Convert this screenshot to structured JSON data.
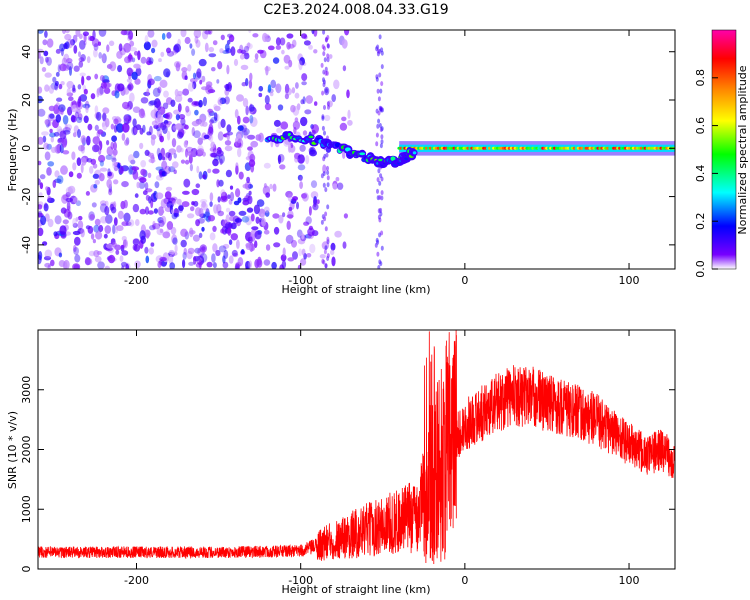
{
  "title": "C2E3.2024.008.04.33.G19",
  "chart_data": [
    {
      "type": "heatmap",
      "xlabel": "Height of straight line (km)",
      "ylabel": "Frequency (Hz)",
      "xlim": [
        -260,
        128
      ],
      "ylim": [
        -50,
        49
      ],
      "x_ticks": [
        -200,
        -100,
        0,
        100
      ],
      "y_ticks": [
        -40,
        -20,
        0,
        20,
        40
      ],
      "colorbar": {
        "label": "Normalized spectral amplitude",
        "range": [
          0,
          1
        ],
        "ticks": [
          "0.0",
          "0.2",
          "0.4",
          "0.6",
          "0.8"
        ],
        "colormap": [
          "#ffffff",
          "#7700ff",
          "#0000ff",
          "#00ffff",
          "#00ff00",
          "#ffff00",
          "#ff8800",
          "#ff0000",
          "#ff00aa"
        ]
      },
      "features": {
        "noise_region": {
          "x_range": [
            -260,
            -80
          ],
          "freq_range": [
            -50,
            49
          ],
          "amplitude": 0.1
        },
        "descending_track": [
          [
            -120,
            4
          ],
          [
            -105,
            5
          ],
          [
            -90,
            3
          ],
          [
            -80,
            1
          ],
          [
            -70,
            -2
          ],
          [
            -60,
            -4
          ],
          [
            -50,
            -6
          ],
          [
            -40,
            -5
          ],
          [
            -35,
            -3
          ],
          [
            -30,
            -1
          ]
        ],
        "carrier_line": {
          "x_range": [
            -40,
            128
          ],
          "freq": 0,
          "peak_amplitude": 0.9
        }
      }
    },
    {
      "type": "line",
      "xlabel": "Height of straight line (km)",
      "ylabel": "SNR (10 * v/v)",
      "xlim": [
        -260,
        128
      ],
      "ylim": [
        0,
        4000
      ],
      "x_ticks": [
        -200,
        -100,
        0,
        100
      ],
      "y_ticks": [
        0,
        1000,
        2000,
        3000
      ],
      "color": "#ff0000",
      "envelope": {
        "x": [
          -260,
          -200,
          -150,
          -100,
          -80,
          -60,
          -40,
          -30,
          -20,
          -10,
          0,
          10,
          20,
          30,
          40,
          60,
          80,
          100,
          110,
          120,
          128
        ],
        "y": [
          280,
          280,
          280,
          300,
          480,
          650,
          800,
          900,
          1500,
          2000,
          2400,
          2600,
          2800,
          2900,
          2900,
          2700,
          2500,
          2100,
          1900,
          2000,
          1800
        ]
      }
    }
  ]
}
